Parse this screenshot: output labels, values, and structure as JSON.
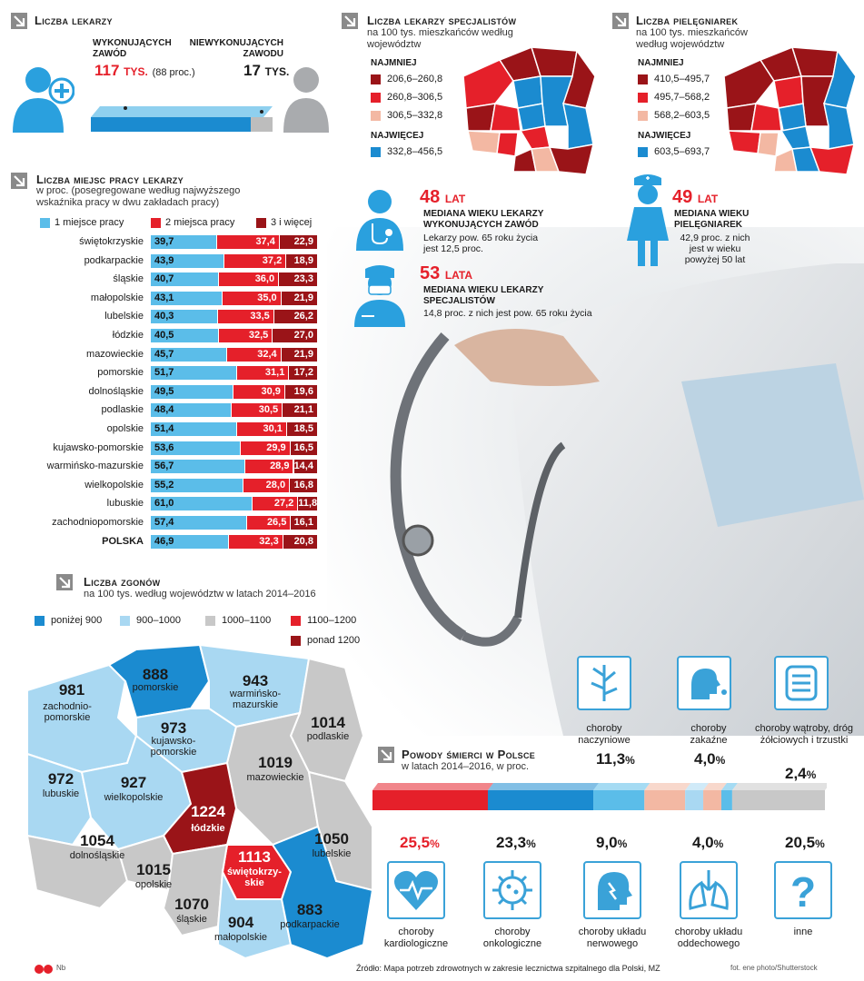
{
  "colors": {
    "light_blue": "#5bbde9",
    "blue": "#1b8bd0",
    "red": "#e5202a",
    "dark_red": "#9a1418",
    "pink": "#f3b8a3",
    "grey": "#c8c8c8",
    "icon_blue": "#3aa2d8"
  },
  "doctors": {
    "title": "Liczba lekarzy",
    "working_label": "WYKONUJĄCYCH ZAWÓD",
    "working_value": "117",
    "working_unit": "TYS.",
    "working_pct": "(88 proc.)",
    "not_working_label": "NIEWYKONUJĄCYCH ZAWODU",
    "not_working_value": "17",
    "not_working_unit": "TYS."
  },
  "specialists": {
    "title": "Liczba lekarzy specjalistów",
    "subtitle": "na 100 tys. mieszkańców według województw",
    "least": "NAJMNIEJ",
    "most": "NAJWIĘCEJ",
    "ranges": [
      "206,6–260,8",
      "260,8–306,5",
      "306,5–332,8",
      "332,8–456,5"
    ]
  },
  "nurses": {
    "title": "Liczba pielęgniarek",
    "subtitle": "na 100 tys. mieszkańców według województw",
    "least": "NAJMNIEJ",
    "most": "NAJWIĘCEJ",
    "ranges": [
      "410,5–495,7",
      "495,7–568,2",
      "568,2–603,5",
      "603,5–693,7"
    ]
  },
  "medians": {
    "doc_age": "48",
    "doc_unit": "LAT",
    "doc_title": "MEDIANA WIEKU LEKARZY WYKONUJĄCYCH ZAWÓD",
    "doc_text": "Lekarzy pow. 65 roku życia jest 12,5 proc.",
    "spec_age": "53",
    "spec_unit": "LATA",
    "spec_title": "MEDIANA WIEKU LEKARZY SPECJALISTÓW",
    "spec_text": "14,8 proc. z nich jest pow. 65 roku życia",
    "nurse_age": "49",
    "nurse_unit": "LAT",
    "nurse_title": "MEDIANA WIEKU PIELĘGNIAREK",
    "nurse_text": "42,9 proc. z nich jest w wieku powyżej 50 lat"
  },
  "workplaces": {
    "title": "Liczba miejsc pracy lekarzy",
    "subtitle": "w proc. (posegregowane według najwyższego wskaźnika pracy w dwu zakładach pracy)",
    "legend": [
      "1 miejsce pracy",
      "2 miejsca pracy",
      "3 i więcej"
    ]
  },
  "chart_data": [
    {
      "type": "bar",
      "title": "Liczba miejsc pracy lekarzy",
      "stacked": true,
      "categories": [
        "świętokrzyskie",
        "podkarpackie",
        "śląskie",
        "małopolskie",
        "lubelskie",
        "łódzkie",
        "mazowieckie",
        "pomorskie",
        "dolnośląskie",
        "podlaskie",
        "opolskie",
        "kujawsko-pomorskie",
        "warmińsko-mazurskie",
        "wielkopolskie",
        "lubuskie",
        "zachodniopomorskie",
        "POLSKA"
      ],
      "series": [
        {
          "name": "1 miejsce pracy",
          "values": [
            "39,7",
            "43,9",
            "40,7",
            "43,1",
            "40,3",
            "40,5",
            "45,7",
            "51,7",
            "49,5",
            "48,4",
            "51,4",
            "53,6",
            "56,7",
            "55,2",
            "61,0",
            "57,4",
            "46,9"
          ]
        },
        {
          "name": "2 miejsca pracy",
          "values": [
            "37,4",
            "37,2",
            "36,0",
            "35,0",
            "33,5",
            "32,5",
            "32,4",
            "31,1",
            "30,9",
            "30,5",
            "30,1",
            "29,9",
            "28,9",
            "28,0",
            "27,2",
            "26,5",
            "32,3"
          ]
        },
        {
          "name": "3 i więcej",
          "values": [
            "22,9",
            "18,9",
            "23,3",
            "21,9",
            "26,2",
            "27,0",
            "21,9",
            "17,2",
            "19,6",
            "21,1",
            "18,5",
            "16,5",
            "14,4",
            "16,8",
            "11,8",
            "16,1",
            "20,8"
          ]
        }
      ],
      "unit": "proc."
    },
    {
      "type": "map",
      "title": "Liczba zgonów",
      "subtitle": "na 100 tys. według województw w latach 2014–2016",
      "legend": [
        "poniżej 900",
        "900–1000",
        "1000–1100",
        "1100–1200",
        "ponad 1200"
      ],
      "regions": [
        {
          "name": "pomorskie",
          "value": "888",
          "cls": 0
        },
        {
          "name": "zachodnio-pomorskie",
          "value": "981",
          "cls": 1
        },
        {
          "name": "warmińsko-mazurskie",
          "value": "943",
          "cls": 1
        },
        {
          "name": "kujawsko-pomorskie",
          "value": "973",
          "cls": 1
        },
        {
          "name": "podlaskie",
          "value": "1014",
          "cls": 2
        },
        {
          "name": "mazowieckie",
          "value": "1019",
          "cls": 2
        },
        {
          "name": "lubuskie",
          "value": "972",
          "cls": 1
        },
        {
          "name": "wielkopolskie",
          "value": "927",
          "cls": 1
        },
        {
          "name": "łódzkie",
          "value": "1224",
          "cls": 4
        },
        {
          "name": "lubelskie",
          "value": "1050",
          "cls": 2
        },
        {
          "name": "dolnośląskie",
          "value": "1054",
          "cls": 2
        },
        {
          "name": "świętokrzy-skie",
          "value": "1113",
          "cls": 3
        },
        {
          "name": "opolskie",
          "value": "1015",
          "cls": 2
        },
        {
          "name": "śląskie",
          "value": "1070",
          "cls": 2
        },
        {
          "name": "małopolskie",
          "value": "904",
          "cls": 1
        },
        {
          "name": "podkarpackie",
          "value": "883",
          "cls": 0
        }
      ]
    },
    {
      "type": "bar",
      "title": "Powody śmierci w Polsce",
      "subtitle": "w latach 2014–2016, w proc.",
      "categories": [
        "choroby kardiologiczne",
        "choroby onkologiczne",
        "choroby naczyniowe",
        "choroby układu nerwowego",
        "choroby zakaźne",
        "choroby układu oddechowego",
        "choroby wątroby, dróg żółciowych i trzustki",
        "inne"
      ],
      "values": [
        25.5,
        23.3,
        11.3,
        9.0,
        4.0,
        4.0,
        2.4,
        20.5
      ],
      "labels": [
        "25,5",
        "23,3",
        "11,3",
        "9,0",
        "4,0",
        "4,0",
        "2,4",
        "20,5"
      ],
      "unit": "%"
    }
  ],
  "footer": {
    "source": "Źródło: Mapa potrzeb zdrowotnych w zakresie lecznictwa szpitalnego dla Polski, MZ",
    "photo": "fot. ene photo/Shutterstock",
    "initials": "Nb"
  }
}
